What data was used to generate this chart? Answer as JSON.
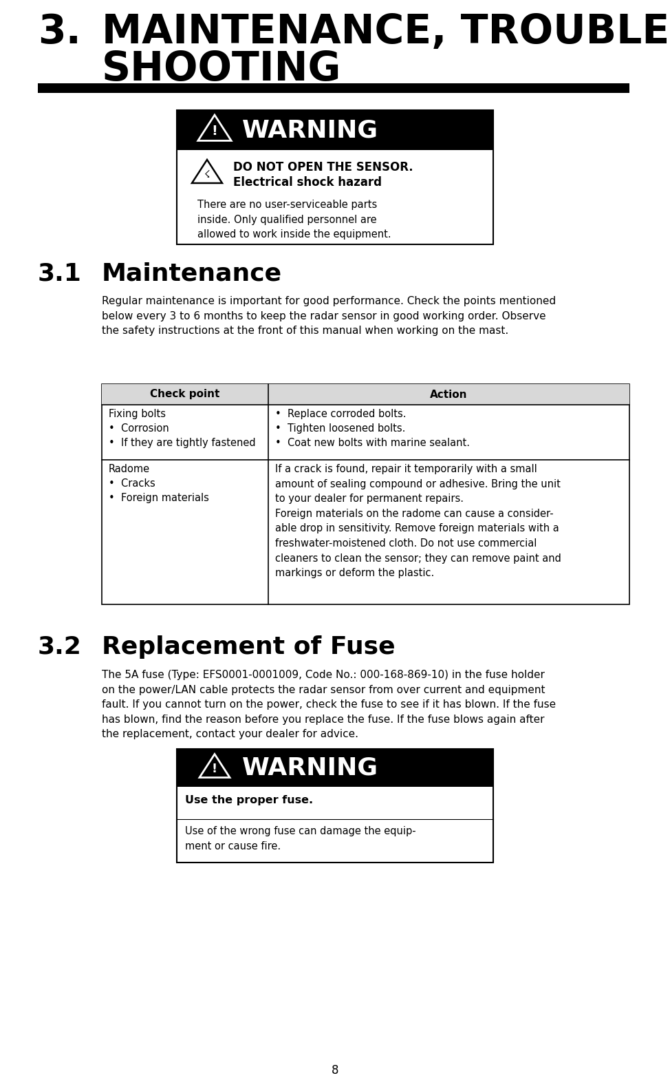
{
  "bg_color": "#ffffff",
  "title_number": "3.",
  "title_line1": "MAINTENANCE, TROUBLE-",
  "title_line2": "SHOOTING",
  "section31_number": "3.1",
  "section31_title": "Maintenance",
  "section31_body": "Regular maintenance is important for good performance. Check the points mentioned\nbelow every 3 to 6 months to keep the radar sensor in good working order. Observe\nthe safety instructions at the front of this manual when working on the mast.",
  "table_header_col1": "Check point",
  "table_header_col2": "Action",
  "table_row1_col1": "Fixing bolts\n•  Corrosion\n•  If they are tightly fastened",
  "table_row1_col2": "•  Replace corroded bolts.\n•  Tighten loosened bolts.\n•  Coat new bolts with marine sealant.",
  "table_row2_col1": "Radome\n•  Cracks\n•  Foreign materials",
  "table_row2_col2": "If a crack is found, repair it temporarily with a small\namount of sealing compound or adhesive. Bring the unit\nto your dealer for permanent repairs.\nForeign materials on the radome can cause a consider-\nable drop in sensitivity. Remove foreign materials with a\nfreshwater-moistened cloth. Do not use commercial\ncleaners to clean the sensor; they can remove paint and\nmarkings or deform the plastic.",
  "section32_number": "3.2",
  "section32_title": "Replacement of Fuse",
  "section32_body": "The 5A fuse (Type: EFS0001-0001009, Code No.: 000-168-869-10) in the fuse holder\non the power/LAN cable protects the radar sensor from over current and equipment\nfault. If you cannot turn on the power, check the fuse to see if it has blown. If the fuse\nhas blown, find the reason before you replace the fuse. If the fuse blows again after\nthe replacement, contact your dealer for advice.",
  "warning1_header": "WARNING",
  "warning1_bold_line1": "DO NOT OPEN THE SENSOR.",
  "warning1_bold_line2": "Electrical shock hazard",
  "warning1_body": "There are no user-serviceable parts\ninside. Only qualified personnel are\nallowed to work inside the equipment.",
  "warning2_header": "WARNING",
  "warning2_bold_line1": "Use the proper fuse.",
  "warning2_body": "Use of the wrong fuse can damage the equip-\nment or cause fire.",
  "page_number": "8"
}
